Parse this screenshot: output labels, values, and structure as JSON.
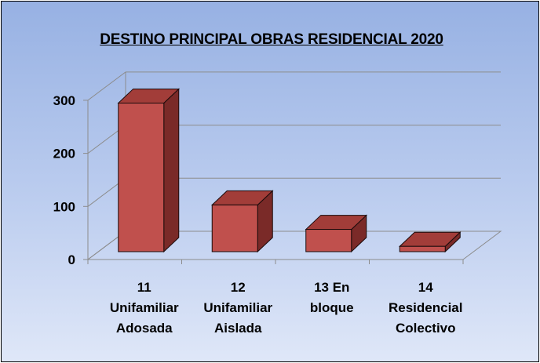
{
  "chart_data": {
    "type": "bar",
    "title": "DESTINO PRINCIPAL OBRAS RESIDENCIAL 2020",
    "categories": [
      [
        "11",
        "Unifamiliar",
        "Adosada"
      ],
      [
        "12",
        "Unifamiliar",
        "Aislada"
      ],
      [
        "13 En",
        "bloque"
      ],
      [
        "14",
        "Residencial",
        "Colectivo"
      ]
    ],
    "values": [
      280,
      88,
      42,
      10
    ],
    "yticks": [
      "0",
      "100",
      "200",
      "300"
    ],
    "ylim": [
      0,
      300
    ],
    "xlabel": "",
    "ylabel": "",
    "grid": true,
    "legend": "none",
    "colors": {
      "bar_front": "#c0504d",
      "bar_top": "#a23d39",
      "bar_side": "#7a2a28",
      "bar_edge": "#1a0a0a",
      "grid": "#8c8c8c",
      "axis": "#8c8c8c"
    }
  }
}
